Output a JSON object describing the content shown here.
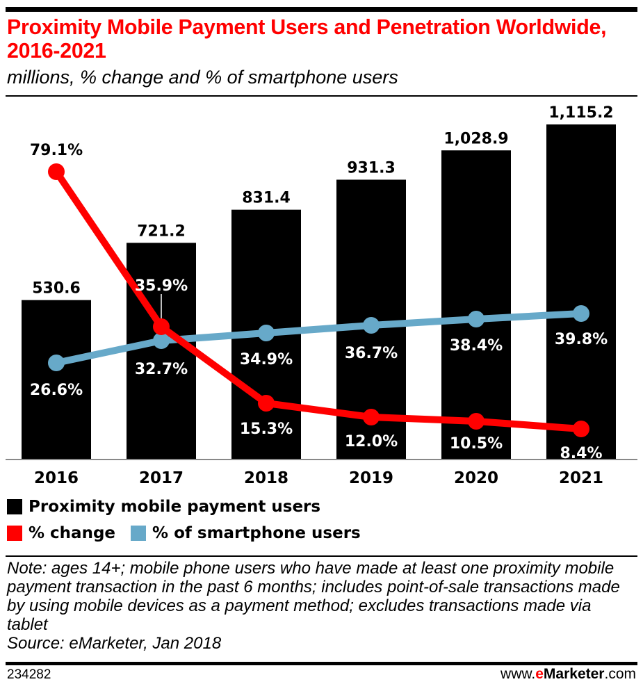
{
  "header": {
    "title": "Proximity Mobile Payment Users and Penetration Worldwide, 2016-2021",
    "subtitle": "millions, % change and % of smartphone users"
  },
  "chart_data": {
    "type": "bar",
    "title": "Proximity Mobile Payment Users and Penetration Worldwide, 2016-2021",
    "subtitle": "millions, % change and % of smartphone users",
    "categories": [
      "2016",
      "2017",
      "2018",
      "2019",
      "2020",
      "2021"
    ],
    "series": [
      {
        "name": "Proximity mobile payment users",
        "type": "bar",
        "unit": "millions",
        "color": "#000000",
        "values": [
          530.6,
          721.2,
          831.4,
          931.3,
          1028.9,
          1115.2
        ],
        "labels": [
          "530.6",
          "721.2",
          "831.4",
          "931.3",
          "1,028.9",
          "1,115.2"
        ]
      },
      {
        "name": "% change",
        "type": "line",
        "unit": "%",
        "color": "#ff0000",
        "values": [
          79.1,
          35.9,
          15.3,
          12.0,
          10.5,
          8.4
        ],
        "labels": [
          "79.1%",
          "35.9%",
          "15.3%",
          "12.0%",
          "10.5%",
          "8.4%"
        ]
      },
      {
        "name": "% of smartphone users",
        "type": "line",
        "unit": "%",
        "color": "#67a9c9",
        "values": [
          26.6,
          32.7,
          34.9,
          36.7,
          38.4,
          39.8
        ],
        "labels": [
          "26.6%",
          "32.7%",
          "34.9%",
          "36.7%",
          "38.4%",
          "39.8%"
        ]
      }
    ],
    "xlabel": "",
    "ylabel": "",
    "grid": false,
    "legend_position": "bottom-left"
  },
  "legend": {
    "items": [
      {
        "label": "Proximity mobile payment users",
        "color": "#000000"
      },
      {
        "label": "% change",
        "color": "#ff0000"
      },
      {
        "label": "% of smartphone users",
        "color": "#67a9c9"
      }
    ]
  },
  "footer": {
    "note": "Note: ages 14+; mobile phone users who have made at least one proximity mobile payment transaction in the past 6 months; includes point-of-sale transactions made by using mobile devices as a payment method; excludes transactions made via tablet",
    "source": "Source: eMarketer, Jan 2018",
    "chart_id": "234282",
    "brand_prefix": "www.",
    "brand_e": "e",
    "brand_name": "Marketer",
    "brand_suffix": ".com"
  }
}
